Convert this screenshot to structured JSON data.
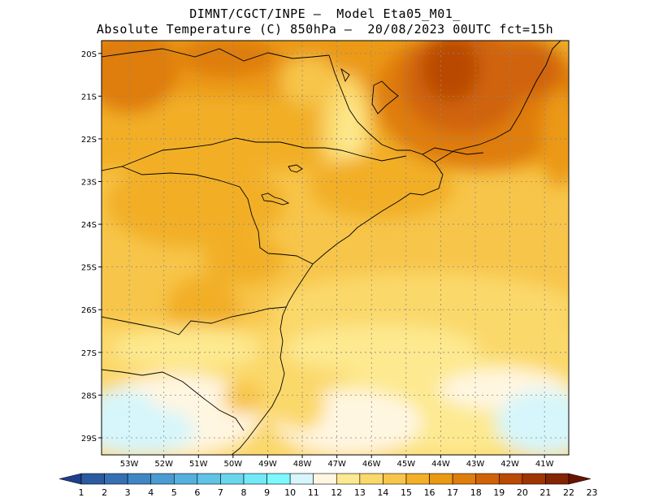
{
  "title": {
    "line1": "DIMNT/CGCT/INPE –  Model Eta05_M01_",
    "line2": "Absolute Temperature (C) 850hPa –  20/08/2023 00UTC fct=15h"
  },
  "map": {
    "lat_labels": [
      "20S",
      "21S",
      "22S",
      "23S",
      "24S",
      "25S",
      "26S",
      "27S",
      "28S",
      "29S"
    ],
    "lon_labels": [
      "53W",
      "52W",
      "51W",
      "50W",
      "49W",
      "48W",
      "47W",
      "46W",
      "45W",
      "44W",
      "43W",
      "42W",
      "41W"
    ],
    "lat_range": [
      -29.4,
      -19.7
    ],
    "lon_range": [
      -53.8,
      -40.3
    ]
  },
  "colorbar": {
    "labels": [
      "1",
      "2",
      "3",
      "4",
      "5",
      "6",
      "7",
      "8",
      "9",
      "10",
      "11",
      "12",
      "13",
      "14",
      "15",
      "16",
      "17",
      "18",
      "19",
      "20",
      "21",
      "22",
      "23"
    ],
    "colors": [
      "#1f3e8c",
      "#2c5aa0",
      "#3670b3",
      "#3f86c4",
      "#4a9bd2",
      "#55b0dd",
      "#5fc3e6",
      "#6ad6ee",
      "#72e9f6",
      "#7cf8ff",
      "#d6f6fb",
      "#fff6e1",
      "#fde98f",
      "#fbd86a",
      "#f7c54a",
      "#f2af27",
      "#eb9912",
      "#df7d0c",
      "#d06308",
      "#ba4a05",
      "#9e3503",
      "#832402",
      "#661401"
    ]
  }
}
